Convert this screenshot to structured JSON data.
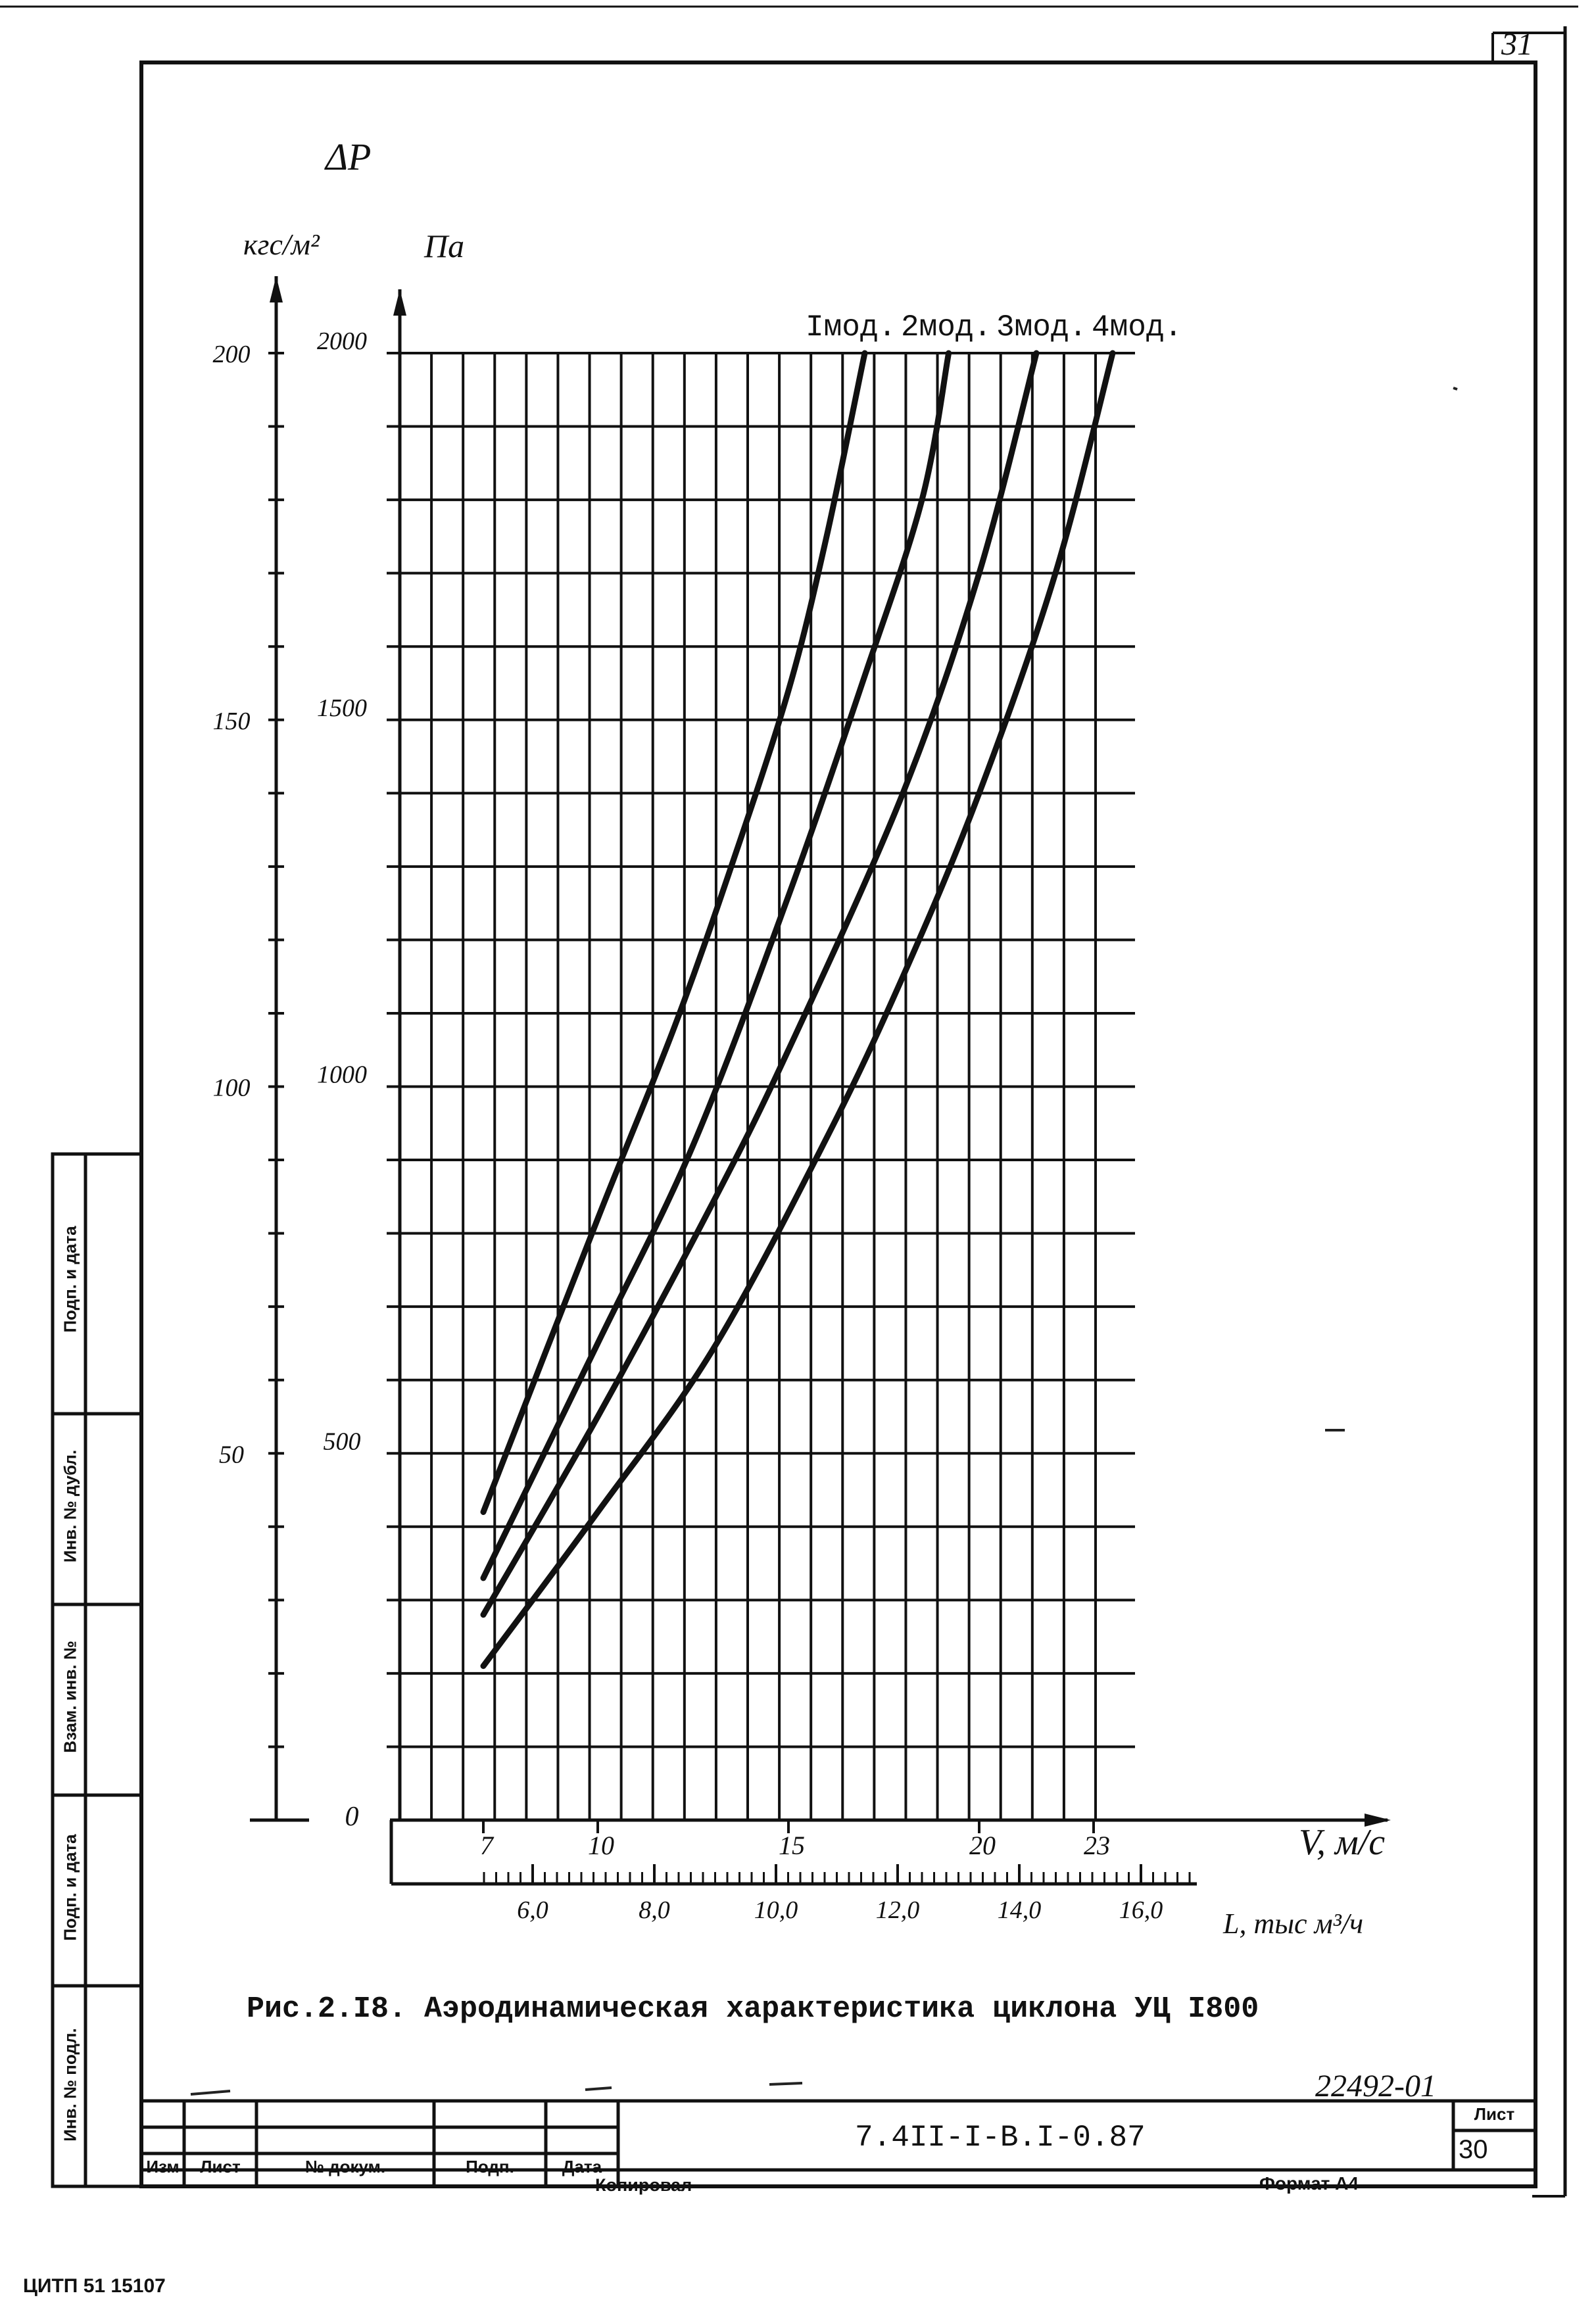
{
  "sheet": {
    "corner_number": "31",
    "ink_number": "22492-01",
    "bottom_code": "ЦИТП   51  15107"
  },
  "side_stamp": [
    "Подп. и дата",
    "Инв. № дубл.",
    "Взам. инв. №",
    "Подп. и дата",
    "Инв. № подл."
  ],
  "title_block": {
    "code": "7.4II-I-B.I-0.87",
    "sheet_label": "Лист",
    "sheet_number": "30",
    "columns": [
      "Изм",
      "Лист",
      "№ докум.",
      "Подп.",
      "Дата"
    ],
    "copied": "Копировал",
    "format": "Формат А4"
  },
  "chart_data": {
    "type": "line",
    "caption": "Рис.2.I8. Аэродинамическая характеристика циклона УЦ I800",
    "y_symbol": "ΔP",
    "y_unit_left": "кгс/м²",
    "y_unit_right": "Па",
    "x_label": "V, м/с",
    "x2_label": "L, тыс м³/ч",
    "ylim_pa": [
      0,
      2000
    ],
    "xlim": [
      7,
      23
    ],
    "y_ticks_pa": [
      "0",
      "500",
      "1000",
      "1500",
      "2000"
    ],
    "y_ticks_kgf": [
      "50",
      "100",
      "150",
      "200"
    ],
    "x_ticks": [
      "7",
      "10",
      "15",
      "20",
      "23"
    ],
    "x2_ticks": [
      "6,0",
      "8,0",
      "10,0",
      "12,0",
      "14,0",
      "16,0"
    ],
    "grid": true,
    "series": [
      {
        "name": "Iмод.",
        "points": [
          [
            7,
            420
          ],
          [
            10,
            820
          ],
          [
            12,
            1080
          ],
          [
            13.5,
            1300
          ],
          [
            15,
            1540
          ],
          [
            16,
            1750
          ],
          [
            17,
            2000
          ]
        ]
      },
      {
        "name": "2мод.",
        "points": [
          [
            7,
            330
          ],
          [
            10,
            650
          ],
          [
            12.5,
            920
          ],
          [
            15,
            1260
          ],
          [
            17,
            1560
          ],
          [
            18.5,
            1800
          ],
          [
            19.2,
            2000
          ]
        ]
      },
      {
        "name": "3мод.",
        "points": [
          [
            7,
            280
          ],
          [
            10,
            550
          ],
          [
            13,
            840
          ],
          [
            15,
            1050
          ],
          [
            18,
            1400
          ],
          [
            20,
            1700
          ],
          [
            21.5,
            2000
          ]
        ]
      },
      {
        "name": "4мод.",
        "points": [
          [
            7,
            210
          ],
          [
            10,
            420
          ],
          [
            13,
            640
          ],
          [
            16,
            930
          ],
          [
            18,
            1150
          ],
          [
            20,
            1400
          ],
          [
            22,
            1700
          ],
          [
            23.5,
            2000
          ]
        ]
      }
    ]
  }
}
